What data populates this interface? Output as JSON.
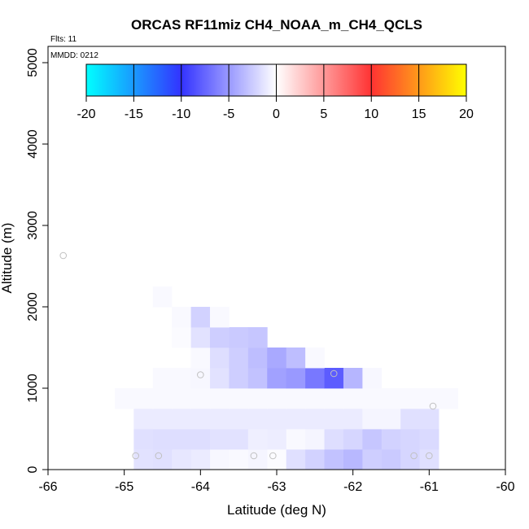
{
  "chart_data": {
    "type": "heatmap",
    "title": "ORCAS RF11miz CH4_NOAA_m_CH4_QCLS",
    "annotations": [
      "Flts: 11",
      "MMDD: 0212"
    ],
    "xlabel": "Latitude (deg N)",
    "ylabel": "Altitude (m)",
    "xlim": [
      -66,
      -60
    ],
    "ylim": [
      0,
      5200
    ],
    "xticks": [
      -66,
      -65,
      -64,
      -63,
      -62,
      -61,
      -60
    ],
    "yticks": [
      0,
      1000,
      2000,
      3000,
      4000,
      5000
    ],
    "colorbar": {
      "ticks": [
        -20,
        -15,
        -10,
        -5,
        0,
        5,
        10,
        15,
        20
      ],
      "range": [
        -20,
        20
      ],
      "colors_negative": [
        "#00ffff",
        "#3333ff",
        "#ffffff"
      ],
      "colors_positive": [
        "#ffffff",
        "#ff3333",
        "#ffff00"
      ]
    },
    "bin_size": {
      "lat": 0.25,
      "alt": 250
    },
    "cells": [
      [
        -64.75,
        125,
        -1.4
      ],
      [
        -64.5,
        125,
        -1.5
      ],
      [
        -64.25,
        125,
        -1.2
      ],
      [
        -64.0,
        125,
        -1.0
      ],
      [
        -63.75,
        125,
        -0.4
      ],
      [
        -63.5,
        125,
        -0.3
      ],
      [
        -63.25,
        125,
        -0.5
      ],
      [
        -63.0,
        125,
        -0.2
      ],
      [
        -62.75,
        125,
        -1.5
      ],
      [
        -62.5,
        125,
        -2.2
      ],
      [
        -62.25,
        125,
        -3.0
      ],
      [
        -62.0,
        125,
        -3.5
      ],
      [
        -61.75,
        125,
        -2.4
      ],
      [
        -61.5,
        125,
        -2.6
      ],
      [
        -61.25,
        125,
        -2.0
      ],
      [
        -61.0,
        125,
        -1.5
      ],
      [
        -64.75,
        375,
        -1.5
      ],
      [
        -64.5,
        375,
        -1.6
      ],
      [
        -64.25,
        375,
        -1.6
      ],
      [
        -64.0,
        375,
        -1.6
      ],
      [
        -63.75,
        375,
        -1.4
      ],
      [
        -63.5,
        375,
        -1.4
      ],
      [
        -63.25,
        375,
        -0.8
      ],
      [
        -63.0,
        375,
        -0.9
      ],
      [
        -62.75,
        375,
        -0.3
      ],
      [
        -62.5,
        375,
        -0.5
      ],
      [
        -62.25,
        375,
        -1.6
      ],
      [
        -62.0,
        375,
        -2.0
      ],
      [
        -61.75,
        375,
        -2.8
      ],
      [
        -61.5,
        375,
        -2.2
      ],
      [
        -61.25,
        375,
        -2.0
      ],
      [
        -61.0,
        375,
        -1.8
      ],
      [
        -64.75,
        625,
        -1.0
      ],
      [
        -64.5,
        625,
        -1.0
      ],
      [
        -64.25,
        625,
        -1.0
      ],
      [
        -64.0,
        625,
        -1.0
      ],
      [
        -63.75,
        625,
        -1.0
      ],
      [
        -63.5,
        625,
        -1.0
      ],
      [
        -63.25,
        625,
        -1.0
      ],
      [
        -63.0,
        625,
        -1.0
      ],
      [
        -62.75,
        625,
        -1.0
      ],
      [
        -62.5,
        625,
        -1.0
      ],
      [
        -62.25,
        625,
        -1.0
      ],
      [
        -62.0,
        625,
        -1.0
      ],
      [
        -61.75,
        625,
        -0.5
      ],
      [
        -61.5,
        625,
        -0.5
      ],
      [
        -61.25,
        625,
        -1.5
      ],
      [
        -61.0,
        625,
        -1.5
      ],
      [
        -65.0,
        875,
        -0.3
      ],
      [
        -64.75,
        875,
        -0.3
      ],
      [
        -64.5,
        875,
        -0.3
      ],
      [
        -64.25,
        875,
        -0.3
      ],
      [
        -64.0,
        875,
        -0.3
      ],
      [
        -63.75,
        875,
        -0.3
      ],
      [
        -63.5,
        875,
        -0.3
      ],
      [
        -63.25,
        875,
        -0.3
      ],
      [
        -63.0,
        875,
        -0.3
      ],
      [
        -62.75,
        875,
        -0.3
      ],
      [
        -62.5,
        875,
        -0.3
      ],
      [
        -62.25,
        875,
        -0.3
      ],
      [
        -62.0,
        875,
        -0.3
      ],
      [
        -61.75,
        875,
        -0.3
      ],
      [
        -61.5,
        875,
        -0.3
      ],
      [
        -61.25,
        875,
        -0.3
      ],
      [
        -61.0,
        875,
        -0.3
      ],
      [
        -60.75,
        875,
        -0.3
      ],
      [
        -64.5,
        1125,
        -0.3
      ],
      [
        -64.25,
        1125,
        -0.3
      ],
      [
        -64.0,
        1125,
        -0.4
      ],
      [
        -63.75,
        1125,
        -1.4
      ],
      [
        -63.5,
        1125,
        -2.4
      ],
      [
        -63.25,
        1125,
        -3.0
      ],
      [
        -63.0,
        1125,
        -4.6
      ],
      [
        -62.75,
        1125,
        -5.0
      ],
      [
        -62.5,
        1125,
        -6.6
      ],
      [
        -62.25,
        1125,
        -8.0
      ],
      [
        -62.0,
        1125,
        -3.6
      ],
      [
        -61.75,
        1125,
        -0.4
      ],
      [
        -64.0,
        1375,
        -0.3
      ],
      [
        -63.75,
        1375,
        -1.6
      ],
      [
        -63.5,
        1375,
        -2.4
      ],
      [
        -63.25,
        1375,
        -3.2
      ],
      [
        -63.0,
        1375,
        -4.2
      ],
      [
        -62.75,
        1375,
        -3.2
      ],
      [
        -62.5,
        1375,
        -0.3
      ],
      [
        -64.25,
        1625,
        -0.2
      ],
      [
        -64.0,
        1625,
        -1.4
      ],
      [
        -63.75,
        1625,
        -2.4
      ],
      [
        -63.5,
        1625,
        -2.6
      ],
      [
        -63.25,
        1625,
        -2.8
      ],
      [
        -64.25,
        1875,
        -0.3
      ],
      [
        -64.0,
        1875,
        -2.2
      ],
      [
        -63.75,
        1875,
        -0.3
      ],
      [
        -64.5,
        2125,
        -0.3
      ]
    ],
    "points": [
      [
        -65.8,
        2630
      ],
      [
        -64.0,
        1165
      ],
      [
        -62.25,
        1180
      ],
      [
        -60.95,
        780
      ],
      [
        -64.85,
        170
      ],
      [
        -64.55,
        170
      ],
      [
        -63.3,
        170
      ],
      [
        -63.05,
        170
      ],
      [
        -61.2,
        170
      ],
      [
        -61.0,
        170
      ]
    ]
  }
}
